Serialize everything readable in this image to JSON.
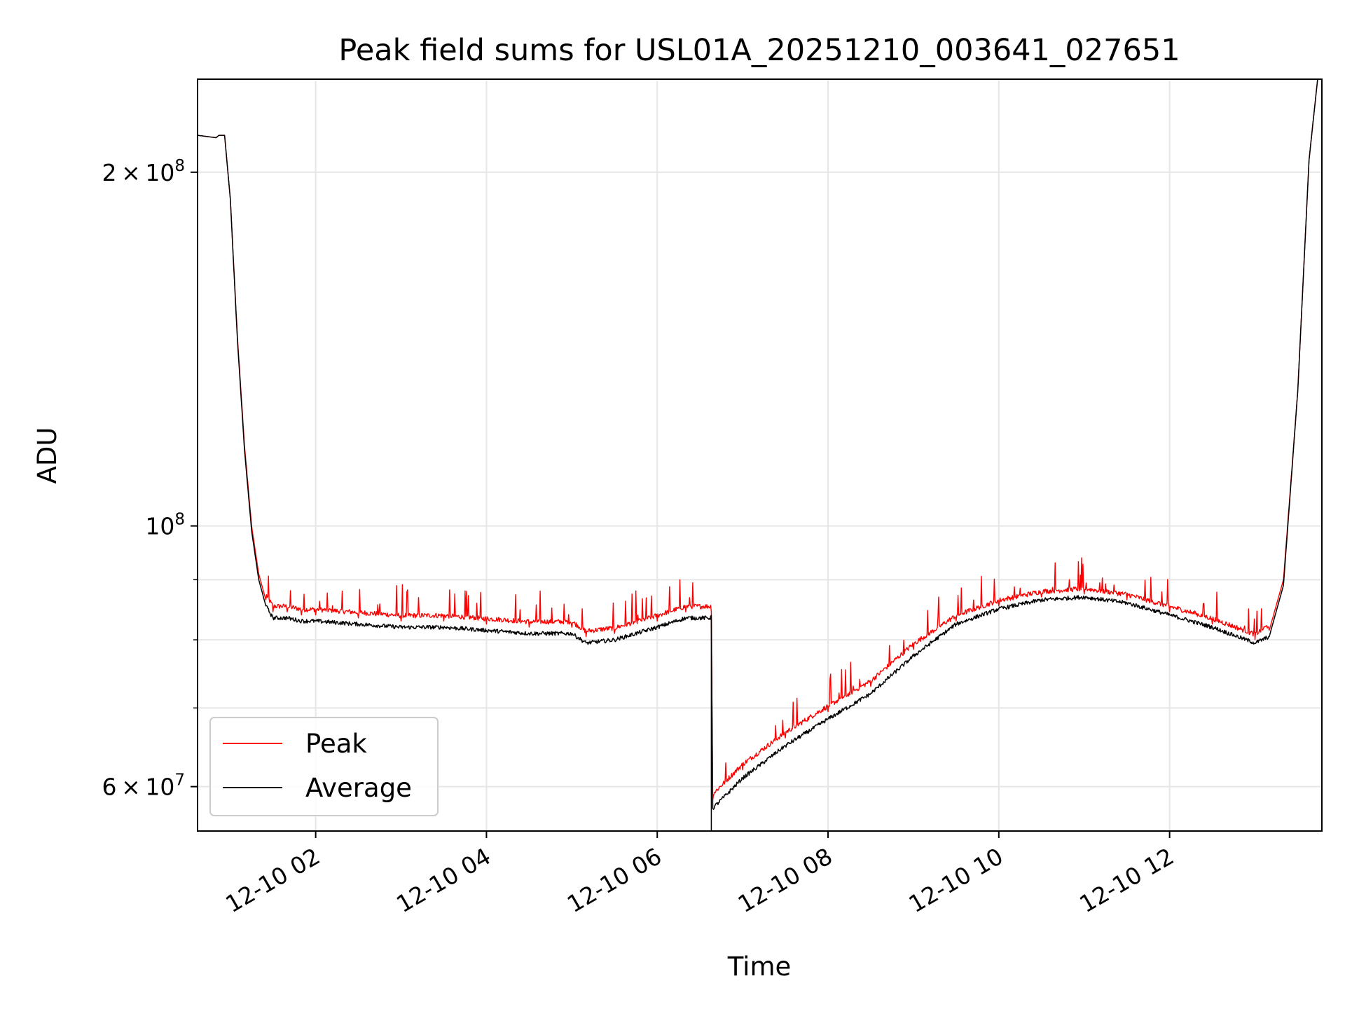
{
  "chart_data": {
    "type": "line",
    "title": "Peak field sums for USL01A_20251210_003641_027651",
    "xlabel": "Time",
    "ylabel": "ADU",
    "yscale": "log",
    "xlim": [
      "2025-12-10 00:37",
      "2025-12-10 13:47"
    ],
    "ylim": [
      55000000.0,
      240000000.0
    ],
    "grid": true,
    "legend_position": "lower-left",
    "x_ticks": [
      "12-10 02",
      "12-10 04",
      "12-10 06",
      "12-10 08",
      "12-10 10",
      "12-10 12"
    ],
    "y_ticks": [
      {
        "value": 200000000.0,
        "mantissa": "2",
        "exp": "8"
      },
      {
        "value": 100000000.0,
        "mantissa": "",
        "exp": "8"
      },
      {
        "value": 60000000.0,
        "mantissa": "6",
        "exp": "7"
      }
    ],
    "y_minor_ticks": [
      70000000.0,
      80000000.0,
      90000000.0
    ],
    "series": [
      {
        "name": "Peak",
        "color": "#ff0000",
        "x": [
          "2025-12-10 00:37",
          "2025-12-10 00:50",
          "2025-12-10 00:52",
          "2025-12-10 00:56",
          "2025-12-10 01:00",
          "2025-12-10 01:05",
          "2025-12-10 01:10",
          "2025-12-10 01:15",
          "2025-12-10 01:20",
          "2025-12-10 01:25",
          "2025-12-10 01:30",
          "2025-12-10 01:40",
          "2025-12-10 01:50",
          "2025-12-10 02:00",
          "2025-12-10 02:30",
          "2025-12-10 03:00",
          "2025-12-10 03:30",
          "2025-12-10 04:00",
          "2025-12-10 04:30",
          "2025-12-10 05:00",
          "2025-12-10 05:10",
          "2025-12-10 05:30",
          "2025-12-10 06:00",
          "2025-12-10 06:20",
          "2025-12-10 06:38",
          "2025-12-10 06:39",
          "2025-12-10 07:00",
          "2025-12-10 07:30",
          "2025-12-10 08:00",
          "2025-12-10 08:30",
          "2025-12-10 09:00",
          "2025-12-10 09:30",
          "2025-12-10 10:00",
          "2025-12-10 10:30",
          "2025-12-10 11:00",
          "2025-12-10 11:30",
          "2025-12-10 12:00",
          "2025-12-10 12:30",
          "2025-12-10 13:00",
          "2025-12-10 13:10",
          "2025-12-10 13:20",
          "2025-12-10 13:30",
          "2025-12-10 13:38",
          "2025-12-10 13:44"
        ],
        "y": [
          215000000.0,
          214000000.0,
          215000000.0,
          215000000.0,
          190000000.0,
          145000000.0,
          117000000.0,
          100000000.0,
          91000000.0,
          86500000.0,
          84500000.0,
          84500000.0,
          84000000.0,
          84000000.0,
          83500000.0,
          83000000.0,
          83000000.0,
          82500000.0,
          82000000.0,
          82000000.0,
          80500000.0,
          81000000.0,
          83000000.0,
          84500000.0,
          84500000.0,
          58500000.0,
          62000000.0,
          66000000.0,
          69500000.0,
          73000000.0,
          78500000.0,
          83000000.0,
          85500000.0,
          87000000.0,
          87500000.0,
          86500000.0,
          84500000.0,
          82500000.0,
          80000000.0,
          81500000.0,
          90000000.0,
          130000000.0,
          205000000.0,
          240000000.0
        ]
      },
      {
        "name": "Average",
        "color": "#000000",
        "x": [
          "2025-12-10 00:37",
          "2025-12-10 00:50",
          "2025-12-10 00:52",
          "2025-12-10 00:56",
          "2025-12-10 01:00",
          "2025-12-10 01:05",
          "2025-12-10 01:10",
          "2025-12-10 01:15",
          "2025-12-10 01:20",
          "2025-12-10 01:25",
          "2025-12-10 01:30",
          "2025-12-10 01:40",
          "2025-12-10 01:50",
          "2025-12-10 02:00",
          "2025-12-10 02:30",
          "2025-12-10 03:00",
          "2025-12-10 03:30",
          "2025-12-10 04:00",
          "2025-12-10 04:30",
          "2025-12-10 05:00",
          "2025-12-10 05:10",
          "2025-12-10 05:30",
          "2025-12-10 06:00",
          "2025-12-10 06:20",
          "2025-12-10 06:38",
          "2025-12-10 06:39",
          "2025-12-10 07:00",
          "2025-12-10 07:30",
          "2025-12-10 08:00",
          "2025-12-10 08:30",
          "2025-12-10 09:00",
          "2025-12-10 09:30",
          "2025-12-10 10:00",
          "2025-12-10 10:30",
          "2025-12-10 11:00",
          "2025-12-10 11:30",
          "2025-12-10 12:00",
          "2025-12-10 12:30",
          "2025-12-10 13:00",
          "2025-12-10 13:10",
          "2025-12-10 13:20",
          "2025-12-10 13:30",
          "2025-12-10 13:38",
          "2025-12-10 13:44"
        ],
        "y": [
          215000000.0,
          214000000.0,
          215000000.0,
          215000000.0,
          190000000.0,
          144000000.0,
          116000000.0,
          99000000.0,
          90000000.0,
          85500000.0,
          83500000.0,
          83500000.0,
          83000000.0,
          83000000.0,
          82500000.0,
          82000000.0,
          82000000.0,
          81500000.0,
          81000000.0,
          81000000.0,
          79500000.0,
          80000000.0,
          82000000.0,
          83500000.0,
          83500000.0,
          57500000.0,
          61000000.0,
          65000000.0,
          68500000.0,
          72000000.0,
          77500000.0,
          82500000.0,
          85000000.0,
          86500000.0,
          87000000.0,
          86000000.0,
          84000000.0,
          82000000.0,
          79500000.0,
          80500000.0,
          89000000.0,
          130000000.0,
          205000000.0,
          240000000.0
        ]
      }
    ]
  }
}
